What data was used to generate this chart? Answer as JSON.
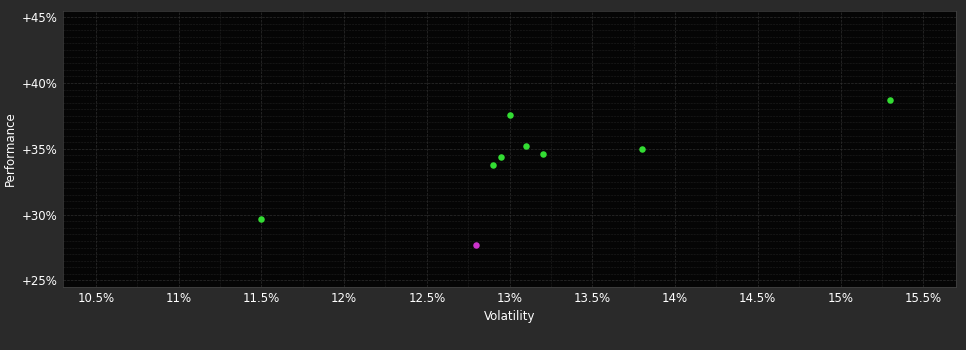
{
  "background_color": "#2a2a2a",
  "plot_bg_color": "#050505",
  "grid_color": "#333333",
  "text_color": "#ffffff",
  "xlabel": "Volatility",
  "ylabel": "Performance",
  "xlim": [
    0.103,
    0.157
  ],
  "ylim": [
    0.245,
    0.455
  ],
  "xticks": [
    0.105,
    0.11,
    0.115,
    0.12,
    0.125,
    0.13,
    0.135,
    0.14,
    0.145,
    0.15,
    0.155
  ],
  "yticks": [
    0.25,
    0.3,
    0.35,
    0.4,
    0.45
  ],
  "minor_yticks": [
    0.255,
    0.26,
    0.265,
    0.27,
    0.275,
    0.28,
    0.285,
    0.29,
    0.295,
    0.305,
    0.31,
    0.315,
    0.32,
    0.325,
    0.33,
    0.335,
    0.34,
    0.345,
    0.355,
    0.36,
    0.365,
    0.37,
    0.375,
    0.38,
    0.385,
    0.39,
    0.395,
    0.405,
    0.41,
    0.415,
    0.42,
    0.425,
    0.43,
    0.435,
    0.44,
    0.445
  ],
  "minor_xticks": [
    0.1075,
    0.1125,
    0.1175,
    0.1225,
    0.1275,
    0.1325,
    0.1375,
    0.1425,
    0.1475,
    0.1525
  ],
  "green_points": [
    [
      0.115,
      0.297
    ],
    [
      0.13,
      0.376
    ],
    [
      0.131,
      0.352
    ],
    [
      0.132,
      0.346
    ],
    [
      0.129,
      0.338
    ],
    [
      0.1295,
      0.344
    ],
    [
      0.138,
      0.35
    ],
    [
      0.153,
      0.387
    ]
  ],
  "magenta_points": [
    [
      0.128,
      0.277
    ]
  ],
  "green_color": "#33dd33",
  "magenta_color": "#cc33cc",
  "marker_size": 5,
  "font_size": 8.5
}
